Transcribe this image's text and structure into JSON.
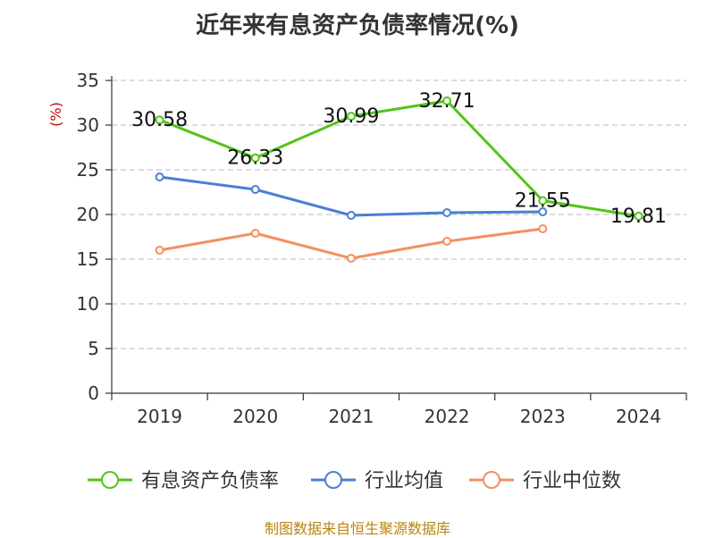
{
  "chart_data": {
    "type": "line",
    "title": "近年来有息资产负债率情况(%)",
    "ylabel": "(%)",
    "xlabel": "",
    "categories": [
      "2019",
      "2020",
      "2021",
      "2022",
      "2023",
      "2024"
    ],
    "ylim": [
      0,
      35
    ],
    "yticks": [
      0,
      5,
      10,
      15,
      20,
      25,
      30,
      35
    ],
    "grid": true,
    "legend_position": "bottom",
    "series": [
      {
        "name": "有息资产负债率",
        "color": "#52c41a",
        "values": [
          30.58,
          26.33,
          30.99,
          32.71,
          21.55,
          19.81
        ],
        "labels": [
          "30.58",
          "26.33",
          "30.99",
          "32.71",
          "21.55",
          "19.81"
        ]
      },
      {
        "name": "行业均值",
        "color": "#4a7fd4",
        "values": [
          24.2,
          22.8,
          19.9,
          20.2,
          20.3,
          null
        ]
      },
      {
        "name": "行业中位数",
        "color": "#f39060",
        "values": [
          16.0,
          17.9,
          15.1,
          17.0,
          18.4,
          null
        ]
      }
    ]
  },
  "source": "制图数据来自恒生聚源数据库"
}
